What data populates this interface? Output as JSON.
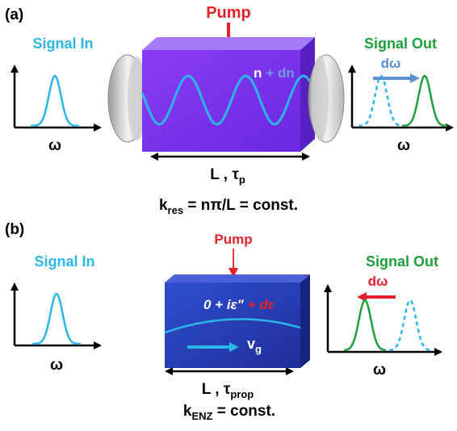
{
  "colors": {
    "pump": "#e8202a",
    "signal": "#2bb6e8",
    "signal_out": "#1e9e3c",
    "shift_a": "#5b8fd6",
    "shift_b": "#e8202a",
    "cavity": "#7b2ff0",
    "enz": "#2a3fc0"
  },
  "panel_a": {
    "label": "(a)",
    "pump": "Pump",
    "signal_in": "Signal In",
    "signal_out": "Signal Out",
    "index_n": "n",
    "index_dn": "+ dn",
    "shift": "dω",
    "axis_in": "ω",
    "axis_out": "ω",
    "length_L": "L , τ",
    "length_sub": "p",
    "cond_k": "k",
    "cond_sub": "res",
    "cond_rest": " = nπ/L = const."
  },
  "panel_b": {
    "label": "(b)",
    "pump": "Pump",
    "signal_in": "Signal In",
    "signal_out": "Signal Out",
    "eps_main": "0 + iε\"",
    "eps_change": "+ dε",
    "vg": "v",
    "vg_sub": "g",
    "shift": "dω",
    "axis_in": "ω",
    "axis_out": "ω",
    "length_L": "L , τ",
    "length_sub": "prop",
    "cond_k": "k",
    "cond_sub": "ENZ",
    "cond_rest": " = const."
  }
}
